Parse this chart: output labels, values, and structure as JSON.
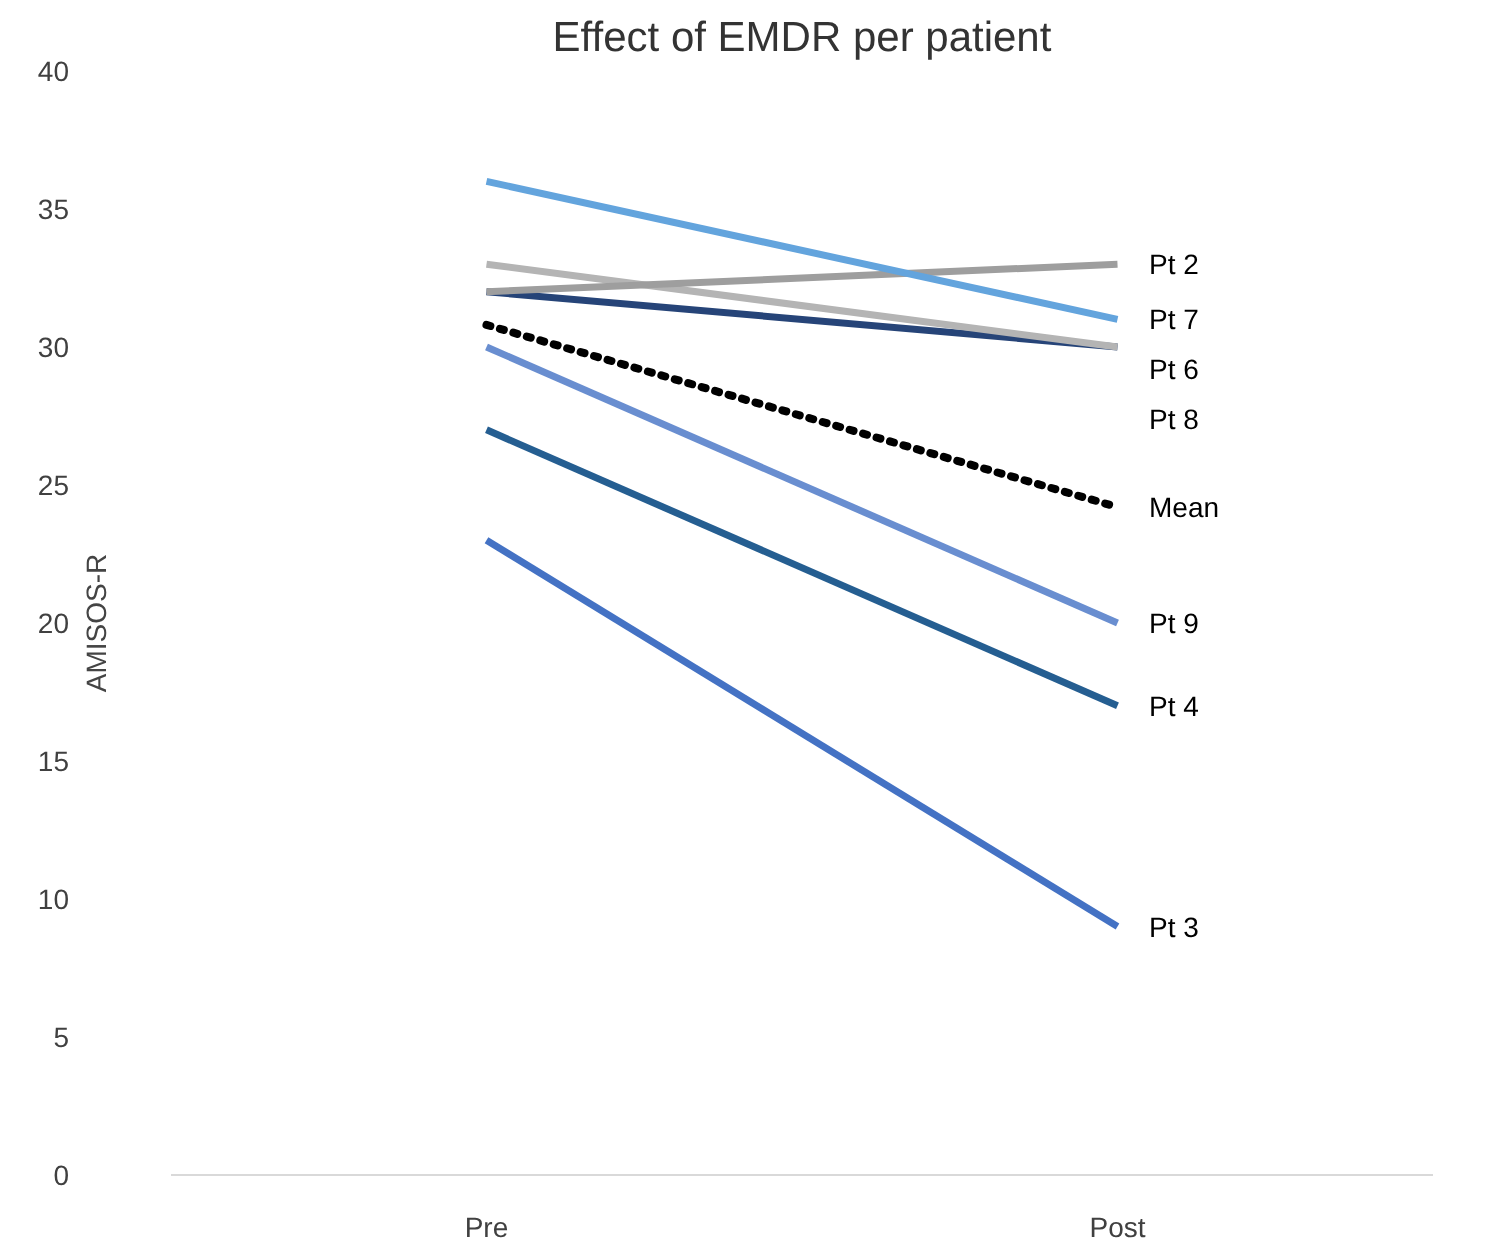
{
  "chart_data": {
    "type": "line",
    "title": "Effect of EMDR per patient",
    "ylabel": "AMISOS-R",
    "categories": [
      "Pre",
      "Post"
    ],
    "ylim": [
      0,
      40
    ],
    "yticks": [
      0,
      5,
      10,
      15,
      20,
      25,
      30,
      35,
      40
    ],
    "grid": false,
    "legend": false,
    "marker": "none",
    "series": [
      {
        "name": "Pt 3",
        "color": "#4472c4",
        "values": [
          23,
          9
        ]
      },
      {
        "name": "Pt 4",
        "color": "#255e91",
        "values": [
          27,
          17
        ]
      },
      {
        "name": "Pt 9",
        "color": "#698ed0",
        "values": [
          30,
          20
        ]
      },
      {
        "name": "Pt 8",
        "color": "#264478",
        "values": [
          32,
          30
        ]
      },
      {
        "name": "Pt 6",
        "color": "#b4b4b4",
        "values": [
          33,
          30
        ]
      },
      {
        "name": "Pt 2",
        "color": "#9e9e9e",
        "values": [
          32,
          33
        ]
      },
      {
        "name": "Pt 7",
        "color": "#63a4dd",
        "values": [
          36,
          31
        ]
      },
      {
        "name": "Mean",
        "color": "#000000",
        "values": [
          30.8,
          24.2
        ],
        "line_style": "dotted"
      }
    ]
  }
}
